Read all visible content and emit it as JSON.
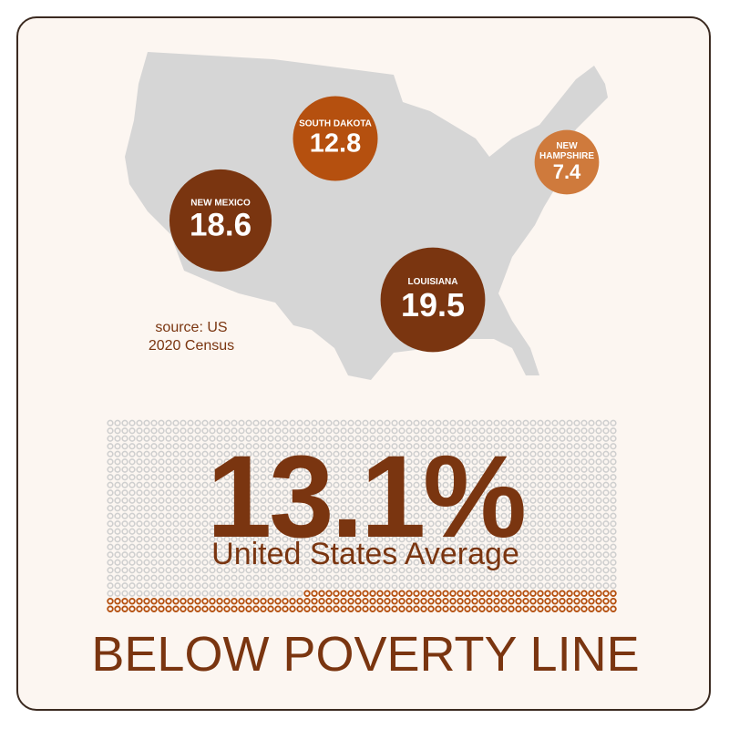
{
  "map": {
    "source": [
      "source: US",
      "2020 Census"
    ],
    "bubbles": [
      {
        "label": "SOUTH DAKOTA",
        "value": 12.8,
        "color": "#b5500f",
        "x": 0,
        "y": 0
      },
      {
        "label": "NEW MEXICO",
        "value": 18.6,
        "color": "#7a3510",
        "x": 0,
        "y": 0
      },
      {
        "label": "LOUISIANA",
        "value": 19.5,
        "color": "#7a3510",
        "x": 0,
        "y": 0
      },
      {
        "label": "NEW HAMPSHIRE",
        "value": 7.4,
        "color": "#cf7a3c",
        "x": 0,
        "y": 0
      }
    ]
  },
  "summary": {
    "value": "13.1%",
    "caption": "United States Average",
    "footer": "BELOW POVERTY LINE"
  }
}
